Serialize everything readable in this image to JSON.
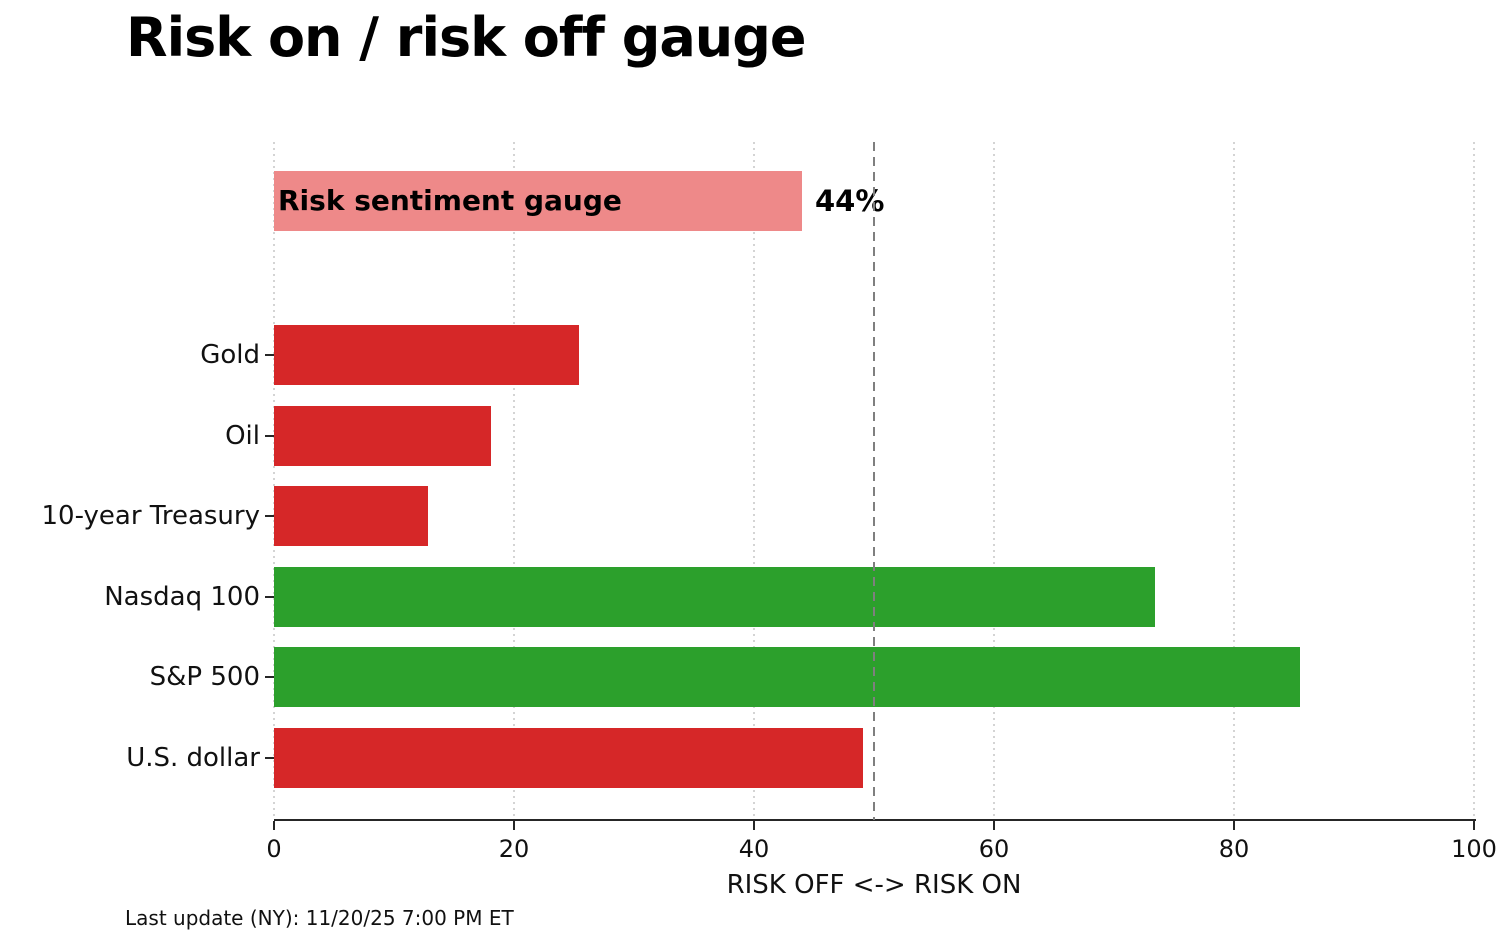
{
  "title": "Risk on / risk off gauge",
  "footer": "Last update (NY): 11/20/25 7:00 PM ET",
  "colors": {
    "red": "#d62728",
    "green": "#2ca02c",
    "pink": "#ee8989",
    "reference_line": "#7f7f7f",
    "grid": "#d4d4d4",
    "axis": "#262626",
    "text": "#111111",
    "title_text": "#000000"
  },
  "chart_data": {
    "type": "bar",
    "orientation": "horizontal",
    "title": "Risk on / risk off gauge",
    "xlabel": "RISK OFF <-> RISK ON",
    "ylabel": "",
    "xlim": [
      0,
      100
    ],
    "xticks": [
      "0",
      "20",
      "40",
      "60",
      "80",
      "100"
    ],
    "xtick_values": [
      0,
      20,
      40,
      60,
      80,
      100
    ],
    "grid": "vertical dotted",
    "legend": "none",
    "reference_line_x": 50,
    "gauge": {
      "label": "Risk sentiment gauge",
      "value": 44,
      "display_value": "44%",
      "color": "pink"
    },
    "categories": [
      "Gold",
      "Oil",
      "10-year Treasury",
      "Nasdaq 100",
      "S&P 500",
      "U.S. dollar"
    ],
    "values": [
      25.4,
      18.1,
      12.8,
      73.4,
      85.5,
      49.1
    ],
    "bar_colors": [
      "red",
      "red",
      "red",
      "green",
      "green",
      "red"
    ]
  }
}
